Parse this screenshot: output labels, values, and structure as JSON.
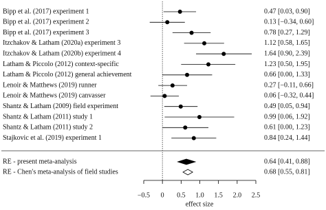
{
  "chart_data": {
    "type": "forest",
    "categories": [
      "Bipp et al. (2017) experiment 1",
      "Bipp et al. (2017) experiment 2",
      "Bipp et al. (2017) experiment 3",
      "Itzchakov & Latham (2020a) experiment 3",
      "Itzchakov & Latham (2020b) experiment 4",
      "Latham & Piccolo (2012) context-specific",
      "Latham & Piccolo (2012) general achievement",
      "Lenoir & Matthews (2019) runner",
      "Lenoir & Matthews (2019) canvasser",
      "Shantz & Latham (2009) field experiment",
      "Shantz & Latham (2011) study 1",
      "Shantz & Latham (2011) study 2",
      "Stajkovic et al. (2019) experiment 1"
    ],
    "values": [
      0.47,
      0.13,
      0.78,
      1.12,
      1.64,
      1.23,
      0.66,
      0.27,
      0.06,
      0.49,
      0.99,
      0.61,
      0.84
    ],
    "lower": [
      0.03,
      -0.34,
      0.27,
      0.58,
      0.9,
      0.5,
      0.0,
      -0.11,
      -0.32,
      0.05,
      0.06,
      0.0,
      0.24
    ],
    "upper": [
      0.9,
      0.6,
      1.29,
      1.65,
      2.39,
      1.95,
      1.33,
      0.66,
      0.44,
      0.94,
      1.92,
      1.23,
      1.44
    ],
    "value_labels": [
      "0.47 [0.03, 0.90]",
      "0.13 [−0.34, 0.60]",
      "0.78 [0.27, 1.29]",
      "1.12 [0.58, 1.65]",
      "1.64 [0.90, 2.39]",
      "1.23 [0.50, 1.95]",
      "0.66 [0.00, 1.33]",
      "0.27 [−0.11, 0.66]",
      "0.06 [−0.32, 0.44]",
      "0.49 [0.05, 0.94]",
      "0.99 [0.06, 1.92]",
      "0.61 [0.00, 1.23]",
      "0.84 [0.24, 1.44]"
    ],
    "summaries": [
      {
        "name": "RE - present meta-analysis",
        "value": 0.64,
        "lower": 0.41,
        "upper": 0.88,
        "value_label": "0.64 [0.41, 0.88]",
        "color": "#000000"
      },
      {
        "name": "RE - Chen′s meta-analysis of field studies",
        "value": 0.68,
        "lower": 0.55,
        "upper": 0.81,
        "value_label": "0.68 [0.55, 0.81]",
        "color": "#ffffff"
      }
    ],
    "xlabel": "effect size",
    "xlim": [
      -0.5,
      2.5
    ],
    "xticks": [
      {
        "value": -0.5,
        "label": "−0.5"
      },
      0,
      0.5,
      {
        "value": 1,
        "label": "1.0"
      },
      1.5,
      {
        "value": 2,
        "label": "2.0"
      },
      2.5
    ],
    "refline": 0,
    "color": "#000000"
  }
}
